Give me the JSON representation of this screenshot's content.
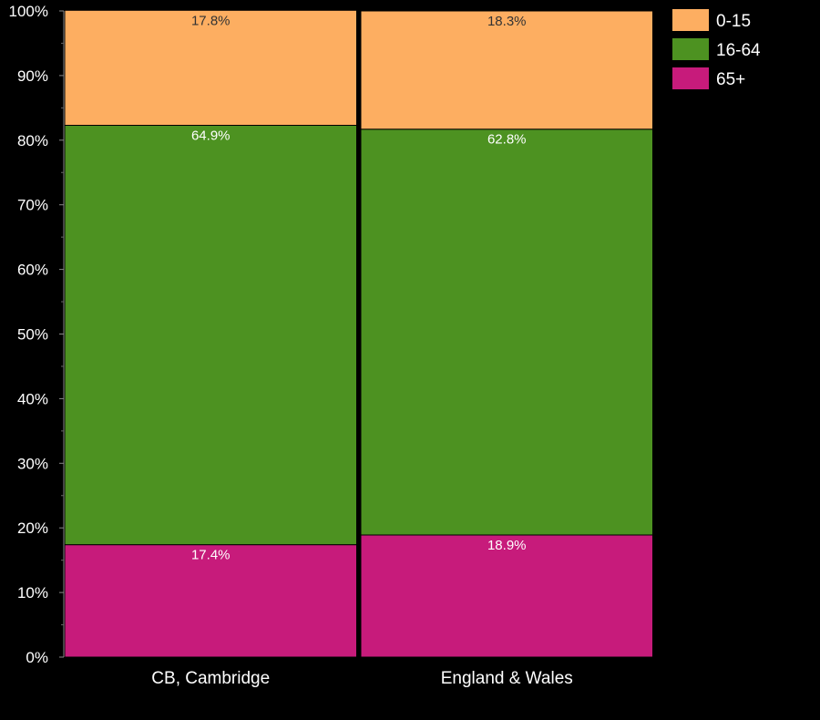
{
  "chart_data": {
    "type": "bar",
    "stacked": true,
    "categories": [
      "CB, Cambridge",
      "England & Wales"
    ],
    "series": [
      {
        "name": "65+",
        "color": "#c71b7b",
        "values": [
          17.4,
          18.9
        ],
        "labels": [
          "17.4%",
          "18.9%"
        ]
      },
      {
        "name": "16-64",
        "color": "#4d9221",
        "values": [
          64.9,
          62.8
        ],
        "labels": [
          "64.9%",
          "62.8%"
        ]
      },
      {
        "name": "0-15",
        "color": "#fdae61",
        "values": [
          17.8,
          18.3
        ],
        "labels": [
          "17.8%",
          "18.3%"
        ]
      }
    ],
    "legend": [
      {
        "name": "0-15",
        "color": "#fdae61"
      },
      {
        "name": "16-64",
        "color": "#4d9221"
      },
      {
        "name": "65+",
        "color": "#c71b7b"
      }
    ],
    "yticks": [
      "0%",
      "10%",
      "20%",
      "30%",
      "40%",
      "50%",
      "60%",
      "70%",
      "80%",
      "90%",
      "100%"
    ],
    "ylim": [
      0,
      100
    ],
    "legend_position": "top-right",
    "grid": false
  }
}
